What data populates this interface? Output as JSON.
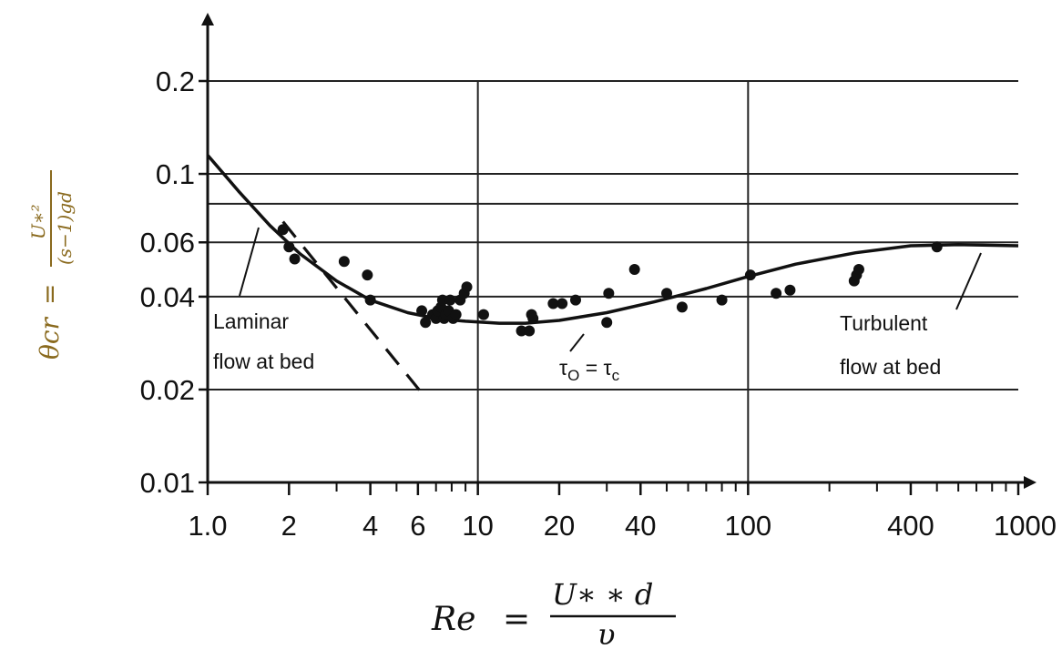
{
  "chart_data": {
    "type": "scatter",
    "x_scale": "log",
    "y_scale": "log",
    "xlim": [
      1,
      1000
    ],
    "ylim": [
      0.01,
      0.2
    ],
    "grid": true,
    "xlabel": {
      "lhs": "Re",
      "eq": "=",
      "numerator": "U∗ ∗ d",
      "denominator": "υ"
    },
    "ylabel": {
      "lhs": "θcr",
      "eq": "=",
      "numerator": "U∗²",
      "denominator": "(s−1)gd"
    },
    "x_ticks": [
      {
        "value": 1,
        "label": "1.0"
      },
      {
        "value": 2,
        "label": "2"
      },
      {
        "value": 4,
        "label": "4"
      },
      {
        "value": 6,
        "label": "6"
      },
      {
        "value": 10,
        "label": "10"
      },
      {
        "value": 20,
        "label": "20"
      },
      {
        "value": 40,
        "label": "40"
      },
      {
        "value": 100,
        "label": "100"
      },
      {
        "value": 400,
        "label": "400"
      },
      {
        "value": 1000,
        "label": "1000"
      }
    ],
    "x_minor_ticks": [
      3,
      5,
      7,
      8,
      9,
      30,
      50,
      60,
      70,
      80,
      90,
      200,
      300,
      500,
      600,
      700,
      800,
      900
    ],
    "y_ticks": [
      {
        "value": 0.2,
        "label": "0.2"
      },
      {
        "value": 0.1,
        "label": "0.1"
      },
      {
        "value": 0.06,
        "label": "0.06"
      },
      {
        "value": 0.04,
        "label": "0.04"
      },
      {
        "value": 0.02,
        "label": "0.02"
      },
      {
        "value": 0.01,
        "label": "0.01"
      }
    ],
    "x_grid": [
      10,
      100
    ],
    "y_grid": [
      0.2,
      0.1,
      0.08,
      0.06,
      0.04,
      0.02
    ],
    "series": [
      {
        "kind": "line",
        "style": "solid",
        "label": "τ0 = τc",
        "x": [
          1.0,
          1.3,
          1.7,
          2.2,
          3.0,
          4.0,
          5.5,
          7.0,
          9.0,
          12.0,
          15.0,
          20.0,
          30.0,
          45.0,
          70.0,
          100.0,
          150.0,
          250.0,
          400.0,
          600.0,
          1000.0
        ],
        "y": [
          0.115,
          0.088,
          0.068,
          0.055,
          0.045,
          0.039,
          0.0355,
          0.034,
          0.0333,
          0.0328,
          0.0328,
          0.0335,
          0.0355,
          0.0385,
          0.0425,
          0.0465,
          0.051,
          0.0555,
          0.0585,
          0.059,
          0.0585
        ]
      },
      {
        "kind": "line",
        "style": "dashed",
        "x": [
          1.9,
          6.5
        ],
        "y": [
          0.07,
          0.0185
        ]
      },
      {
        "kind": "points",
        "x": [
          1.9,
          2.0,
          2.1,
          3.2,
          3.9,
          4.0,
          6.2,
          6.4,
          6.8,
          7.0,
          7.1,
          7.3,
          7.4,
          7.5,
          7.6,
          7.8,
          7.9,
          8.1,
          8.3,
          8.6,
          8.9,
          9.1,
          10.5,
          14.5,
          15.5,
          15.8,
          16.0,
          19.0,
          20.5,
          23.0,
          30.0,
          30.5,
          38.0,
          50.0,
          57.0,
          80.0,
          102.0,
          127.0,
          143.0,
          247.0,
          252.0,
          257.0,
          500.0
        ],
        "y": [
          0.066,
          0.058,
          0.053,
          0.052,
          0.047,
          0.039,
          0.036,
          0.033,
          0.035,
          0.034,
          0.036,
          0.037,
          0.039,
          0.034,
          0.035,
          0.036,
          0.039,
          0.034,
          0.035,
          0.039,
          0.041,
          0.043,
          0.035,
          0.031,
          0.031,
          0.035,
          0.034,
          0.038,
          0.038,
          0.039,
          0.033,
          0.041,
          0.049,
          0.041,
          0.037,
          0.039,
          0.047,
          0.041,
          0.042,
          0.045,
          0.047,
          0.049,
          0.058
        ]
      }
    ],
    "annotations": [
      {
        "lines": [
          "Laminar",
          "flow at bed"
        ],
        "align": "start"
      },
      {
        "lines": [
          "Turbulent",
          "flow at bed"
        ],
        "align": "start"
      }
    ],
    "curve_label": {
      "base": "τ",
      "sub": "O",
      "eq": " = ",
      "base2": "τ",
      "sub2": "c"
    }
  }
}
